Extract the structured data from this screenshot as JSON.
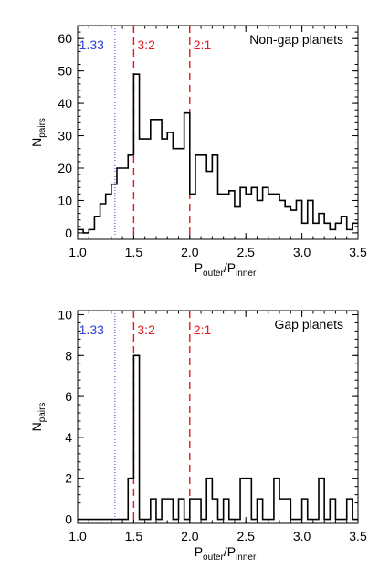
{
  "colors": {
    "blue": "#2b3fd6",
    "red": "#e01b1b",
    "black": "#000000"
  },
  "chart_data": [
    {
      "type": "histogram",
      "title": "Non-gap planets",
      "xlabel": {
        "main": "P",
        "sub1": "outer",
        "mid": "/P",
        "sub2": "inner"
      },
      "ylabel": {
        "main": "N",
        "sub": "pairs"
      },
      "xlim": [
        1.0,
        3.5
      ],
      "ylim": [
        -2,
        64
      ],
      "xticks": [
        "1.0",
        "1.5",
        "2.0",
        "2.5",
        "3.0",
        "3.5"
      ],
      "yticks": [
        "0",
        "10",
        "20",
        "30",
        "40",
        "50",
        "60"
      ],
      "bin_width": 0.05,
      "bin_start": 1.0,
      "counts": [
        1,
        0,
        1,
        5,
        9,
        12,
        15,
        20,
        20,
        24,
        49,
        29,
        29,
        35,
        35,
        29,
        31,
        26,
        26,
        37,
        12,
        24,
        24,
        19,
        24,
        12,
        12,
        13,
        8,
        14,
        12,
        14,
        10,
        14,
        12,
        12,
        10,
        8,
        7,
        10,
        3,
        10,
        3,
        6,
        3,
        1,
        3,
        5,
        1,
        3
      ],
      "reference_lines": [
        {
          "x": 1.333,
          "label": "1.33",
          "color": "blue",
          "style": "dotted"
        },
        {
          "x": 1.5,
          "label": "3:2",
          "color": "red",
          "style": "dashed"
        },
        {
          "x": 2.0,
          "label": "2:1",
          "color": "red",
          "style": "dashed"
        }
      ]
    },
    {
      "type": "histogram",
      "title": "Gap planets",
      "xlabel": {
        "main": "P",
        "sub1": "outer",
        "mid": "/P",
        "sub2": "inner"
      },
      "ylabel": {
        "main": "N",
        "sub": "pairs"
      },
      "xlim": [
        1.0,
        3.5
      ],
      "ylim": [
        -0.2,
        10.2
      ],
      "xticks": [
        "1.0",
        "1.5",
        "2.0",
        "2.5",
        "3.0",
        "3.5"
      ],
      "yticks": [
        "0",
        "2",
        "4",
        "6",
        "8",
        "10"
      ],
      "bin_width": 0.05,
      "bin_start": 1.0,
      "counts": [
        0,
        0,
        0,
        0,
        0,
        0,
        0,
        0,
        0,
        2,
        8,
        0,
        0,
        1,
        0,
        1,
        1,
        0,
        1,
        0,
        1,
        1,
        0,
        2,
        1,
        0,
        1,
        0,
        0,
        2,
        2,
        0,
        1,
        0,
        0,
        2,
        1,
        1,
        0,
        0,
        1,
        0,
        0,
        2,
        0,
        1,
        0,
        0,
        1,
        0
      ],
      "reference_lines": [
        {
          "x": 1.333,
          "label": "1.33",
          "color": "blue",
          "style": "dotted"
        },
        {
          "x": 1.5,
          "label": "3:2",
          "color": "red",
          "style": "dashed"
        },
        {
          "x": 2.0,
          "label": "2:1",
          "color": "red",
          "style": "dashed"
        }
      ]
    }
  ]
}
